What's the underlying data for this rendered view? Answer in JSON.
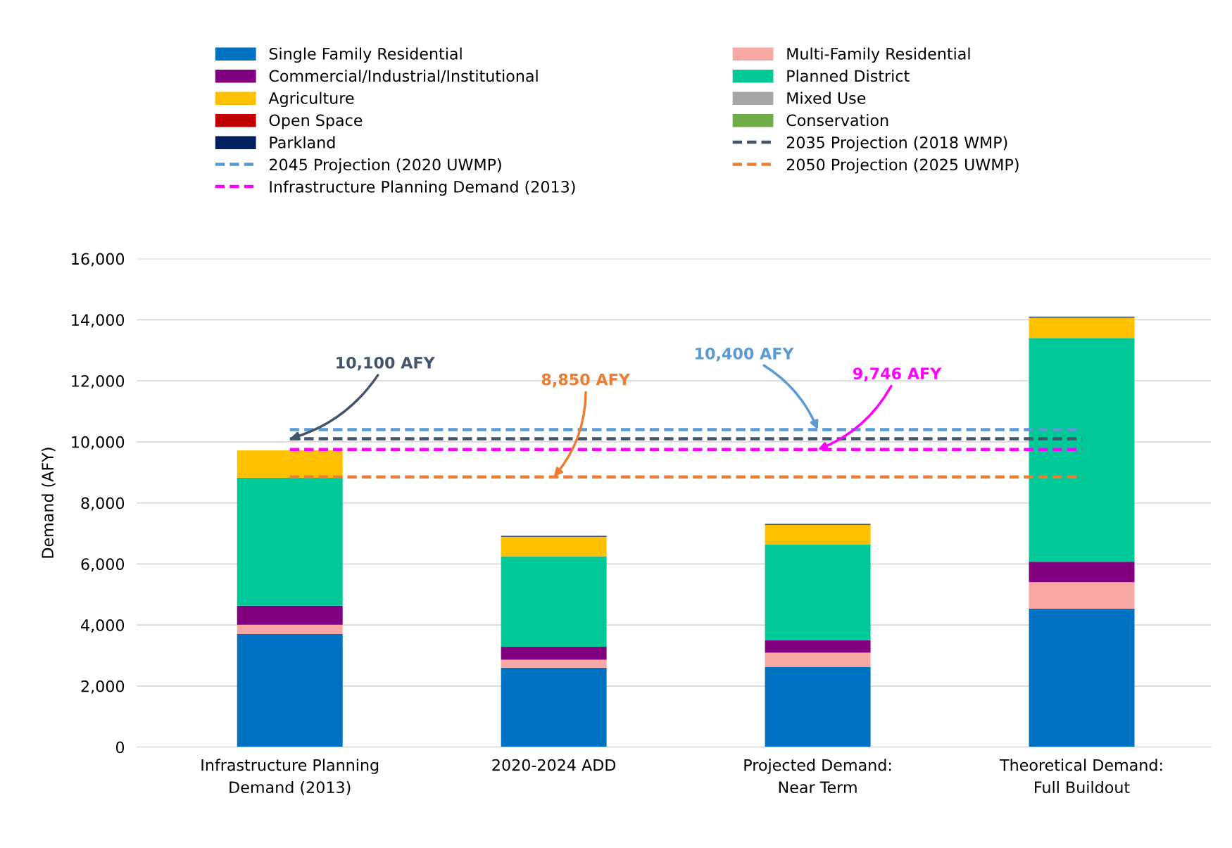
{
  "chart_data": {
    "type": "bar",
    "stacked": true,
    "ylabel": "Demand (AFY)",
    "categories": [
      "Infrastructure Planning Demand (2013)",
      "2020-2024 ADD",
      "Projected Demand: Near Term",
      "Theoretical Demand: Full Buildout"
    ],
    "series": [
      {
        "name": "Single Family Residential",
        "color": "#0070c0",
        "values": [
          3700,
          2600,
          2620,
          4530
        ]
      },
      {
        "name": "Multi-Family Residential",
        "color": "#f8a8a4",
        "values": [
          310,
          260,
          470,
          870
        ]
      },
      {
        "name": "Commercial/Industrial/Institutional",
        "color": "#800080",
        "values": [
          620,
          430,
          410,
          670
        ]
      },
      {
        "name": "Planned District",
        "color": "#00c896",
        "values": [
          4190,
          2960,
          3140,
          7330
        ]
      },
      {
        "name": "Agriculture",
        "color": "#ffc000",
        "values": [
          900,
          640,
          640,
          670
        ]
      },
      {
        "name": "Mixed Use",
        "color": "#a6a6a6",
        "values": [
          0,
          0,
          0,
          0
        ]
      },
      {
        "name": "Open Space",
        "color": "#c00000",
        "values": [
          0,
          0,
          0,
          0
        ]
      },
      {
        "name": "Conservation",
        "color": "#70ad47",
        "values": [
          0,
          0,
          0,
          0
        ]
      },
      {
        "name": "Parkland",
        "color": "#002060",
        "values": [
          null,
          30,
          30,
          30
        ]
      }
    ],
    "ref_lines": [
      {
        "axis": "y",
        "value": 10100,
        "label": "2035 Projection (2018 WMP)",
        "color": "#44546a",
        "line_style": "dashed"
      },
      {
        "axis": "y",
        "value": 10400,
        "label": "2045 Projection (2020 UWMP)",
        "color": "#5b9bd5",
        "line_style": "dashed"
      },
      {
        "axis": "y",
        "value": 8850,
        "label": "2050 Projection (2025 UWMP)",
        "color": "#ed7d31",
        "line_style": "dashed"
      },
      {
        "axis": "y",
        "value": 9746,
        "label": "Infrastructure Planning Demand (2013)",
        "color": "#ff00ff",
        "line_style": "dashed"
      }
    ],
    "annotations": [
      {
        "text": "10,100 AFY",
        "x": "Infrastructure Planning Demand (2013)",
        "y": 10100
      },
      {
        "text": "10,400 AFY",
        "x": "Projected Demand: Near Term",
        "y": 10400
      },
      {
        "text": "8,850 AFY",
        "x": "2020-2024 ADD",
        "y": 8850
      },
      {
        "text": "9,746 AFY",
        "x": "Projected Demand: Near Term",
        "y": 9746
      }
    ],
    "ylim": [
      0,
      16000
    ],
    "yticks": [
      {
        "value": 0,
        "label": "0"
      },
      {
        "value": 2000,
        "label": "2,000"
      },
      {
        "value": 4000,
        "label": "4,000"
      },
      {
        "value": 6000,
        "label": "6,000"
      },
      {
        "value": 8000,
        "label": "8,000"
      },
      {
        "value": 10000,
        "label": "10,000"
      },
      {
        "value": 12000,
        "label": "12,000"
      },
      {
        "value": 14000,
        "label": "14,000"
      },
      {
        "value": 16000,
        "label": "16,000"
      }
    ],
    "grid": "y",
    "legend": "top"
  }
}
